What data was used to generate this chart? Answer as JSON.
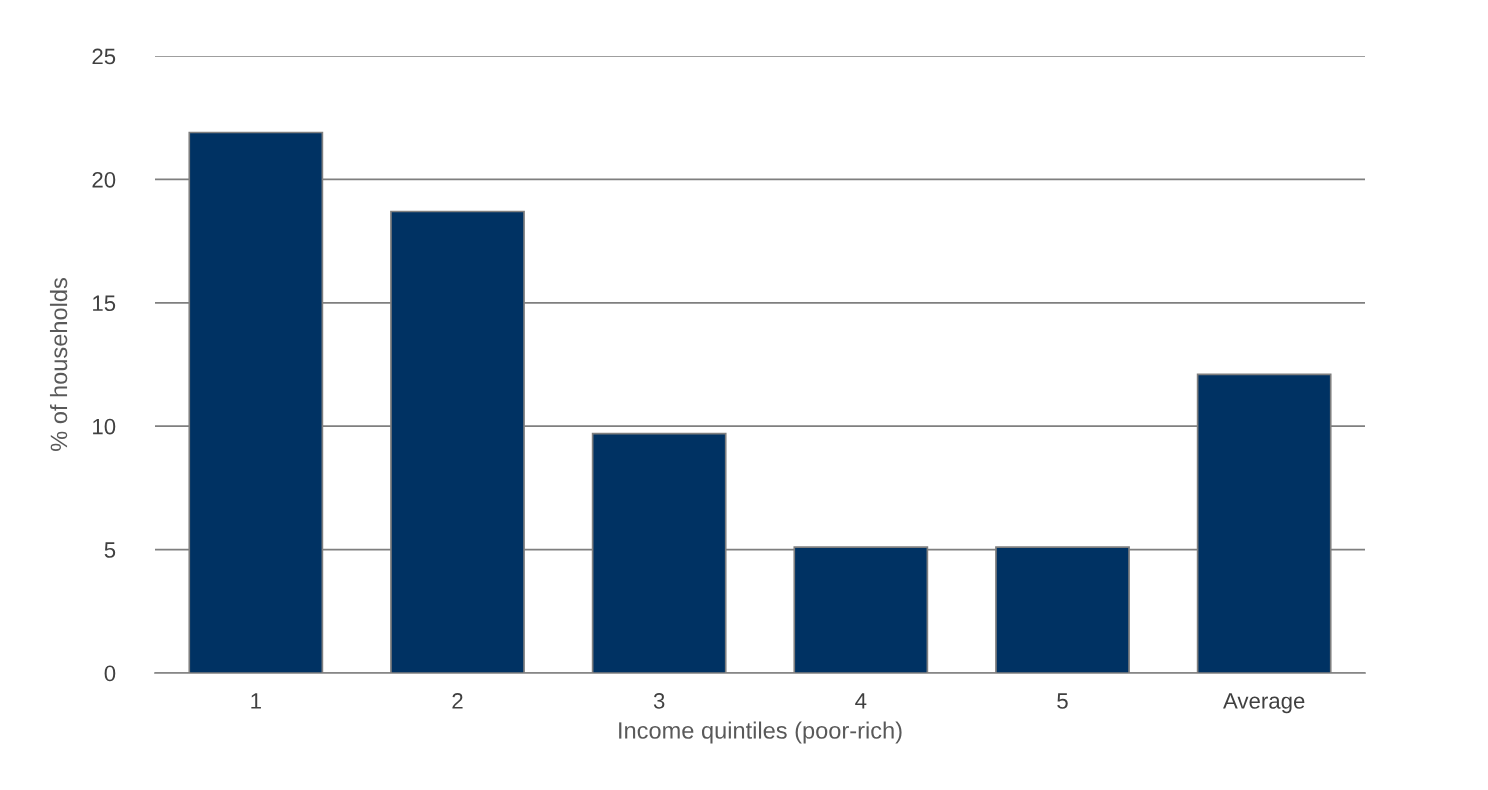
{
  "chart_data": {
    "type": "bar",
    "xlabel": "Income quintiles (poor-rich)",
    "ylabel": "% of households",
    "categories": [
      "1",
      "2",
      "3",
      "4",
      "5",
      "Average"
    ],
    "values": [
      21.9,
      18.7,
      9.7,
      5.1,
      5.1,
      12.1
    ],
    "color": "#003263",
    "ylim": [
      0,
      25
    ],
    "yticks": [
      0,
      5,
      10,
      15,
      20,
      25
    ],
    "grid": "y",
    "legend": false
  }
}
